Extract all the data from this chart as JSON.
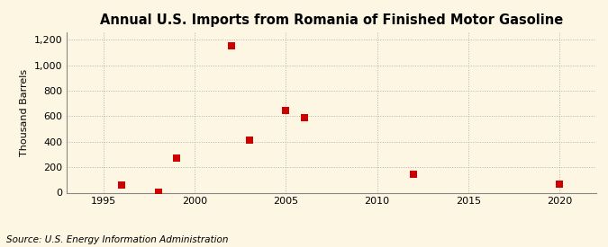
{
  "title": "Annual U.S. Imports from Romania of Finished Motor Gasoline",
  "ylabel": "Thousand Barrels",
  "source": "Source: U.S. Energy Information Administration",
  "background_color": "#fdf6e3",
  "data_points": [
    [
      1996,
      60
    ],
    [
      1998,
      5
    ],
    [
      1999,
      270
    ],
    [
      2002,
      1150
    ],
    [
      2003,
      410
    ],
    [
      2005,
      645
    ],
    [
      2006,
      590
    ],
    [
      2012,
      145
    ],
    [
      2020,
      70
    ]
  ],
  "marker_color": "#cc0000",
  "marker_size": 36,
  "xlim": [
    1993,
    2022
  ],
  "ylim": [
    0,
    1260
  ],
  "yticks": [
    0,
    200,
    400,
    600,
    800,
    1000,
    1200
  ],
  "ytick_labels": [
    "0",
    "200",
    "400",
    "600",
    "800",
    "1,000",
    "1,200"
  ],
  "xticks": [
    1995,
    2000,
    2005,
    2010,
    2015,
    2020
  ],
  "grid_color": "#aaaaaa",
  "grid_style": ":",
  "grid_alpha": 0.9,
  "title_fontsize": 10.5,
  "label_fontsize": 8,
  "tick_fontsize": 8,
  "source_fontsize": 7.5
}
